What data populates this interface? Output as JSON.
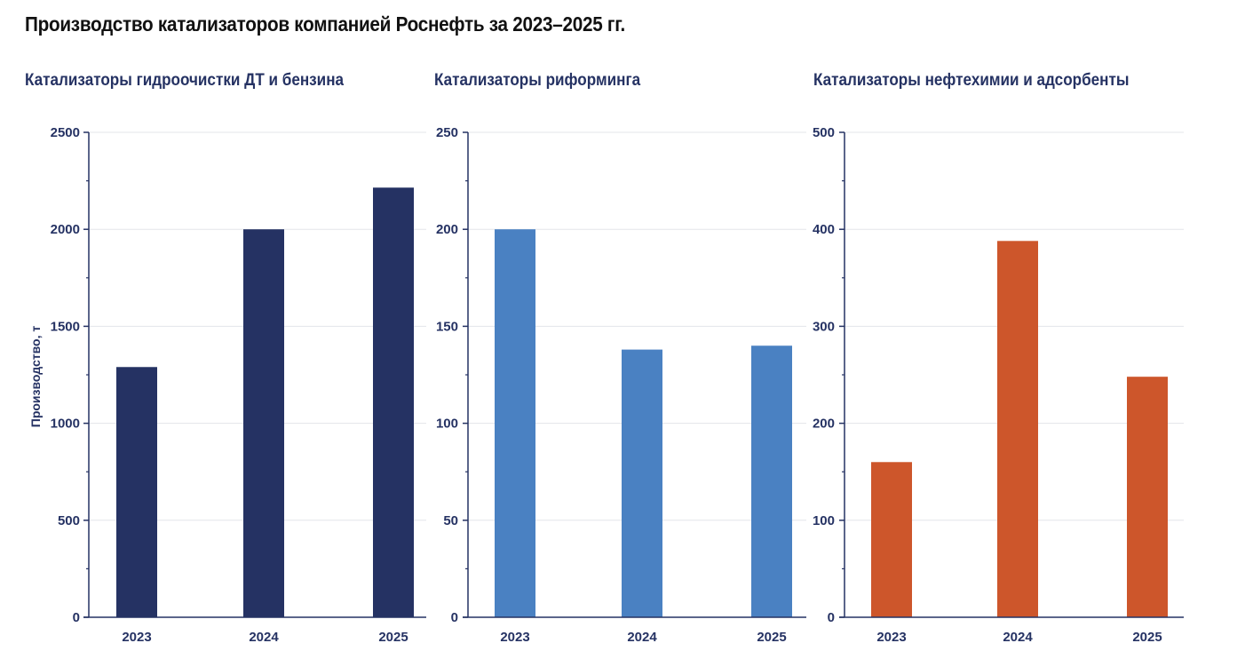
{
  "title": "Производство катализаторов компанией Роснефть за 2023–2025 гг.",
  "chart_data": [
    {
      "type": "bar",
      "title": "Катализаторы гидроочистки ДТ и бензина",
      "ylabel": "Производство, т",
      "xlabel": "",
      "categories": [
        "2023",
        "2024",
        "2025"
      ],
      "values": [
        1290,
        2000,
        2215
      ],
      "ylim": [
        0,
        2500
      ],
      "yticks": [
        0,
        500,
        1000,
        1500,
        2000,
        2500
      ],
      "color": "#253263",
      "grid": true
    },
    {
      "type": "bar",
      "title": "Катализаторы риформинга",
      "ylabel": "",
      "xlabel": "",
      "categories": [
        "2023",
        "2024",
        "2025"
      ],
      "values": [
        200,
        138,
        140
      ],
      "ylim": [
        0,
        250
      ],
      "yticks": [
        0,
        50,
        100,
        150,
        200,
        250
      ],
      "color": "#4a81c2",
      "grid": true
    },
    {
      "type": "bar",
      "title": "Катализаторы нефтехимии и адсорбенты",
      "ylabel": "",
      "xlabel": "",
      "categories": [
        "2023",
        "2024",
        "2025"
      ],
      "values": [
        160,
        388,
        248
      ],
      "ylim": [
        0,
        500
      ],
      "yticks": [
        0,
        100,
        200,
        300,
        400,
        500
      ],
      "color": "#cd562b",
      "grid": true
    }
  ]
}
